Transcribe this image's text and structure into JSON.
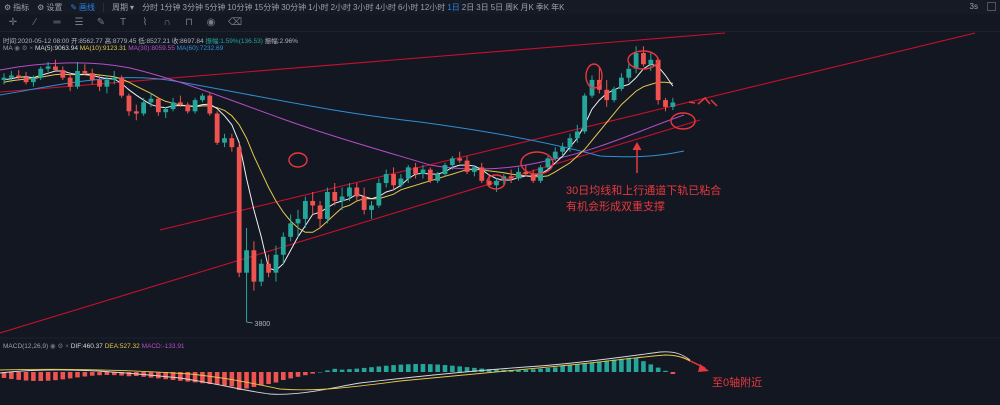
{
  "toolbar": {
    "indicator": "指标",
    "settings": "设置",
    "drawing": "画线",
    "period": "周期",
    "intervals": [
      "分时",
      "1分钟",
      "3分钟",
      "5分钟",
      "10分钟",
      "15分钟",
      "30分钟",
      "1小时",
      "2小时",
      "3小时",
      "4小时",
      "6小时",
      "12小时",
      "1日",
      "2日",
      "3日",
      "5日",
      "周K",
      "月K",
      "季K",
      "年K"
    ],
    "active_interval": "1日",
    "right_text": "3s"
  },
  "info": {
    "time": "时间:2020-05-12 08:00",
    "open": "开:8562.77",
    "high": "高:8779.45",
    "low": "低:8527.21",
    "close": "收:8697.84",
    "amp": "振幅:1.59%(136.53)",
    "swing": "振幅:2.96%"
  },
  "ma_legend": {
    "label": "MA",
    "ma5": "MA(5):9063.94",
    "ma10": "MA(10):9123.31",
    "ma30": "MA(30):8059.55",
    "ma60": "MA(60):7232.69"
  },
  "macd_legend": {
    "label": "MACD(12,26,9)",
    "dif": "DIF:460.37",
    "dea": "DEA:527.32",
    "macd": "MACD:-133.91"
  },
  "annotations": {
    "text1_line1": "30日均线和上行通道下轨已粘合",
    "text1_line2": "有机会形成双重支撑",
    "text2": "至0轴附近"
  },
  "colors": {
    "background": "#131722",
    "up": "#26a69a",
    "down": "#ef5350",
    "ma5": "#f0f0f0",
    "ma10": "#e6c84a",
    "ma30": "#b94cc9",
    "ma60": "#2f8fd8",
    "channel": "#c8102e",
    "annotation": "#e8383d"
  },
  "chart_data": {
    "type": "candlestick",
    "low_marker": "3800",
    "candles_ohlc": [
      [
        9200,
        9350,
        9100,
        9250
      ],
      [
        9250,
        9400,
        9150,
        9300
      ],
      [
        9300,
        9420,
        9200,
        9260
      ],
      [
        9260,
        9380,
        9100,
        9150
      ],
      [
        9150,
        9300,
        9050,
        9250
      ],
      [
        9250,
        9500,
        9200,
        9450
      ],
      [
        9450,
        9600,
        9380,
        9500
      ],
      [
        9500,
        9650,
        9400,
        9420
      ],
      [
        9420,
        9500,
        9200,
        9250
      ],
      [
        9250,
        9350,
        8950,
        9050
      ],
      [
        9050,
        9600,
        9000,
        9400
      ],
      [
        9400,
        9550,
        9300,
        9350
      ],
      [
        9350,
        9450,
        9100,
        9200
      ],
      [
        9200,
        9300,
        8950,
        9050
      ],
      [
        9050,
        9300,
        8900,
        9200
      ],
      [
        9200,
        9400,
        9100,
        9250
      ],
      [
        9250,
        9300,
        8800,
        8850
      ],
      [
        8850,
        8900,
        8400,
        8500
      ],
      [
        8500,
        8650,
        8300,
        8450
      ],
      [
        8450,
        8800,
        8400,
        8700
      ],
      [
        8700,
        8900,
        8600,
        8780
      ],
      [
        8780,
        8800,
        8400,
        8480
      ],
      [
        8480,
        8600,
        8350,
        8550
      ],
      [
        8550,
        8800,
        8500,
        8700
      ],
      [
        8700,
        8850,
        8600,
        8650
      ],
      [
        8650,
        8700,
        8450,
        8500
      ],
      [
        8500,
        8800,
        8450,
        8750
      ],
      [
        8750,
        8900,
        8700,
        8850
      ],
      [
        8850,
        8900,
        8400,
        8450
      ],
      [
        8450,
        8500,
        7750,
        7800
      ],
      [
        7800,
        8000,
        7700,
        7900
      ],
      [
        7900,
        8000,
        7600,
        7700
      ],
      [
        7700,
        7800,
        4800,
        4900
      ],
      [
        4900,
        5900,
        3800,
        5400
      ],
      [
        5400,
        5600,
        4500,
        4700
      ],
      [
        4700,
        5200,
        4600,
        5100
      ],
      [
        5100,
        5300,
        4800,
        4900
      ],
      [
        4900,
        5500,
        4700,
        5300
      ],
      [
        5300,
        5800,
        5100,
        5700
      ],
      [
        5700,
        6200,
        5600,
        6000
      ],
      [
        6000,
        6300,
        5700,
        6100
      ],
      [
        6100,
        6600,
        5900,
        6500
      ],
      [
        6500,
        6700,
        6200,
        6400
      ],
      [
        6400,
        6500,
        5900,
        6100
      ],
      [
        6100,
        6800,
        6000,
        6700
      ],
      [
        6700,
        6900,
        6400,
        6500
      ],
      [
        6500,
        6800,
        6300,
        6600
      ],
      [
        6600,
        6900,
        6500,
        6800
      ],
      [
        6800,
        6900,
        6500,
        6600
      ],
      [
        6600,
        6800,
        6200,
        6300
      ],
      [
        6300,
        6500,
        6100,
        6400
      ],
      [
        6400,
        7000,
        6350,
        6900
      ],
      [
        6900,
        7200,
        6800,
        7100
      ],
      [
        7100,
        7250,
        6750,
        6850
      ],
      [
        6850,
        7100,
        6800,
        7000
      ],
      [
        7000,
        7300,
        6900,
        7250
      ],
      [
        7250,
        7350,
        7000,
        7100
      ],
      [
        7100,
        7300,
        7000,
        7200
      ],
      [
        7200,
        7250,
        6900,
        6950
      ],
      [
        6950,
        7150,
        6900,
        7100
      ],
      [
        7100,
        7350,
        7050,
        7300
      ],
      [
        7300,
        7500,
        7200,
        7450
      ],
      [
        7450,
        7600,
        7350,
        7400
      ],
      [
        7400,
        7500,
        7100,
        7150
      ],
      [
        7150,
        7300,
        7050,
        7250
      ],
      [
        7250,
        7350,
        6900,
        6950
      ],
      [
        6950,
        7100,
        6800,
        6850
      ],
      [
        6850,
        7000,
        6700,
        6950
      ],
      [
        6950,
        7100,
        6850,
        7050
      ],
      [
        7050,
        7200,
        6900,
        7000
      ],
      [
        7000,
        7250,
        6950,
        7150
      ],
      [
        7150,
        7300,
        7050,
        7100
      ],
      [
        7100,
        7200,
        6900,
        6950
      ],
      [
        6950,
        7300,
        6900,
        7250
      ],
      [
        7250,
        7500,
        7200,
        7450
      ],
      [
        7450,
        7700,
        7400,
        7600
      ],
      [
        7600,
        7800,
        7500,
        7700
      ],
      [
        7700,
        8000,
        7600,
        7900
      ],
      [
        7900,
        8200,
        7800,
        8050
      ],
      [
        8050,
        8900,
        8000,
        8850
      ],
      [
        8850,
        9300,
        8800,
        9200
      ],
      [
        9200,
        9500,
        8900,
        8980
      ],
      [
        8980,
        9200,
        8600,
        8750
      ],
      [
        8750,
        9050,
        8700,
        9000
      ],
      [
        9000,
        9350,
        8950,
        9250
      ],
      [
        9250,
        9550,
        9150,
        9450
      ],
      [
        9450,
        9950,
        9350,
        9800
      ],
      [
        9800,
        9950,
        9500,
        9550
      ],
      [
        9550,
        9800,
        9400,
        9650
      ],
      [
        9650,
        9700,
        8650,
        8750
      ],
      [
        8750,
        8800,
        8500,
        8600
      ],
      [
        8600,
        8800,
        8527,
        8697
      ]
    ],
    "ma5": [
      9200,
      9230,
      9260,
      9270,
      9250,
      9300,
      9350,
      9400,
      9400,
      9350,
      9320,
      9320,
      9300,
      9260,
      9230,
      9220,
      9120,
      8980,
      8860,
      8750,
      8650,
      8600,
      8580,
      8620,
      8630,
      8620,
      8610,
      8650,
      8660,
      8560,
      8400,
      8200,
      7800,
      7000,
      6300,
      5700,
      5000,
      4950,
      5100,
      5400,
      5700,
      5950,
      6200,
      6250,
      6350,
      6450,
      6500,
      6550,
      6650,
      6600,
      6550,
      6600,
      6700,
      6750,
      6850,
      7000,
      7100,
      7120,
      7100,
      7100,
      7150,
      7250,
      7300,
      7300,
      7280,
      7200,
      7080,
      7000,
      6960,
      6970,
      7020,
      7060,
      7050,
      7100,
      7200,
      7350,
      7500,
      7700,
      7900,
      8200,
      8550,
      8750,
      8900,
      8980,
      9050,
      9100,
      9250,
      9450,
      9550,
      9500,
      9300,
      9063
    ],
    "ma10": [
      9150,
      9180,
      9200,
      9220,
      9230,
      9260,
      9290,
      9320,
      9330,
      9320,
      9320,
      9330,
      9330,
      9310,
      9290,
      9270,
      9220,
      9150,
      9060,
      8980,
      8900,
      8800,
      8720,
      8680,
      8640,
      8620,
      8600,
      8620,
      8620,
      8580,
      8520,
      8400,
      8200,
      7900,
      7500,
      7150,
      6800,
      6500,
      6250,
      6050,
      5900,
      5800,
      5800,
      5900,
      6050,
      6200,
      6350,
      6400,
      6500,
      6550,
      6550,
      6550,
      6600,
      6650,
      6750,
      6800,
      6850,
      6900,
      6950,
      7000,
      7050,
      7100,
      7150,
      7200,
      7200,
      7200,
      7170,
      7150,
      7130,
      7100,
      7080,
      7060,
      7040,
      7040,
      7060,
      7150,
      7250,
      7350,
      7500,
      7650,
      7850,
      8050,
      8250,
      8450,
      8650,
      8800,
      8950,
      9050,
      9100,
      9150,
      9150,
      9123
    ]
  }
}
